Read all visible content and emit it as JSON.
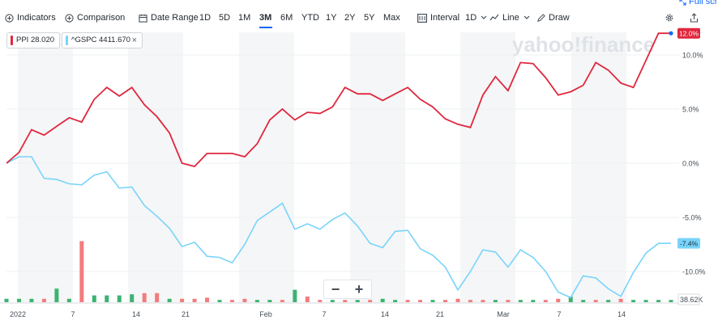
{
  "toolbar": {
    "indicators": "Indicators",
    "comparison": "Comparison",
    "date_range": "Date Range",
    "ranges": [
      "1D",
      "5D",
      "1M",
      "3M",
      "6M",
      "YTD",
      "1Y",
      "2Y",
      "5Y",
      "Max"
    ],
    "active_range": "3M",
    "interval": "Interval",
    "interval_value": "1D",
    "chart_type": "Line",
    "draw": "Draw",
    "fullscreen": "Full scre"
  },
  "chips": {
    "ppi": "PPI 28.020",
    "gspc": "^GSPC 4411.670",
    "close": "×"
  },
  "watermark": "yahoo!finance",
  "zoom": {
    "minus": "−",
    "plus": "+"
  },
  "colors": {
    "ppi": "#e0273d",
    "gspc": "#79d4fa",
    "vol_up": "#3cb371",
    "vol_down": "#f37c7e",
    "shade": "#f5f6f7"
  },
  "chart_data": {
    "type": "line",
    "x_tick_labels": [
      "2022",
      "7",
      "14",
      "21",
      "Feb",
      "7",
      "14",
      "21",
      "Mar",
      "7",
      "14"
    ],
    "y_tick_labels": [
      "12.0%",
      "10.0%",
      "5.0%",
      "0.0%",
      "-5.0%",
      "-7.4%",
      "-10.0%"
    ],
    "ylim": [
      -12.5,
      12.6
    ],
    "volume_label": "38.62K",
    "series": [
      {
        "name": "PPI",
        "last_label": "12.0%",
        "values": [
          0.0,
          1.0,
          3.1,
          2.6,
          3.4,
          4.2,
          3.8,
          5.9,
          7.0,
          6.2,
          7.0,
          5.4,
          4.3,
          2.8,
          0.0,
          -0.3,
          0.9,
          0.9,
          0.9,
          0.6,
          1.8,
          4.0,
          5.0,
          4.0,
          4.7,
          4.6,
          5.2,
          7.0,
          6.4,
          6.4,
          5.8,
          6.4,
          7.0,
          5.9,
          5.2,
          4.1,
          3.6,
          3.3,
          6.3,
          8.0,
          6.7,
          9.3,
          9.2,
          7.9,
          6.3,
          6.6,
          7.2,
          9.3,
          8.6,
          7.4,
          7.0,
          9.5,
          12.0,
          12.0
        ]
      },
      {
        "name": "^GSPC",
        "last_label": "-7.4%",
        "values": [
          0.0,
          0.6,
          0.6,
          -1.4,
          -1.5,
          -1.9,
          -2.0,
          -1.1,
          -0.8,
          -2.3,
          -2.2,
          -3.9,
          -4.9,
          -6.0,
          -7.7,
          -7.3,
          -8.6,
          -8.7,
          -9.2,
          -7.5,
          -5.3,
          -4.5,
          -3.7,
          -6.1,
          -5.6,
          -6.1,
          -5.2,
          -4.6,
          -5.8,
          -7.4,
          -7.8,
          -6.3,
          -6.2,
          -7.9,
          -8.5,
          -9.6,
          -11.7,
          -10.0,
          -8.0,
          -8.2,
          -9.6,
          -8.0,
          -8.7,
          -10.0,
          -11.9,
          -12.4,
          -10.4,
          -10.6,
          -11.6,
          -12.3,
          -10.1,
          -8.3,
          -7.4,
          -7.4
        ]
      }
    ],
    "volume": {
      "values": [
        3,
        3,
        3,
        3,
        12,
        3,
        54,
        6,
        6,
        6,
        7,
        8,
        8,
        3,
        3,
        3,
        4,
        2,
        2,
        3,
        2,
        2,
        2,
        11,
        5,
        2,
        2,
        2,
        2,
        2,
        3,
        2,
        2,
        2,
        2,
        2,
        3,
        2,
        2,
        2,
        2,
        2,
        2,
        2,
        3,
        5,
        2,
        2,
        2,
        3,
        2,
        2,
        2,
        2
      ],
      "up": [
        true,
        true,
        true,
        false,
        true,
        true,
        false,
        true,
        true,
        true,
        true,
        false,
        false,
        true,
        false,
        false,
        false,
        true,
        false,
        false,
        true,
        true,
        false,
        true,
        false,
        false,
        true,
        false,
        true,
        false,
        true,
        true,
        false,
        false,
        true,
        false,
        false,
        false,
        false,
        true,
        false,
        true,
        true,
        false,
        false,
        true,
        true,
        false,
        true,
        false,
        true,
        true,
        true,
        true
      ]
    }
  }
}
